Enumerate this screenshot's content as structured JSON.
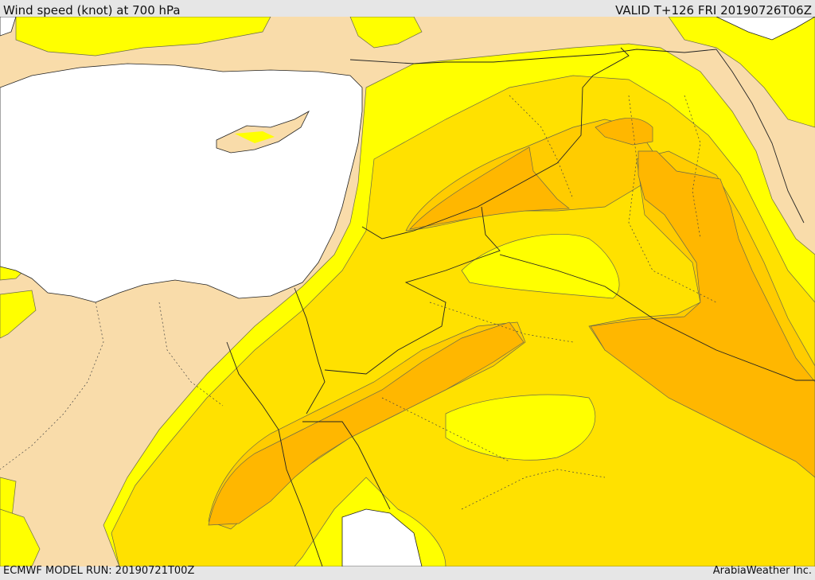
{
  "header": {
    "title": "Wind speed (knot) at 700 hPa",
    "valid": "VALID T+126 FRI 20190726T06Z"
  },
  "footer": {
    "model_run": "ECMWF MODEL RUN: 20190721T00Z",
    "credit": "ArabiaWeather Inc."
  },
  "colors": {
    "sea": "#ffffff",
    "calm": "#f9dcaa",
    "light": "#ffff00",
    "moderate": "#ffe100",
    "fresh": "#ffcc00",
    "strong": "#ffb700",
    "border": "#222222"
  }
}
